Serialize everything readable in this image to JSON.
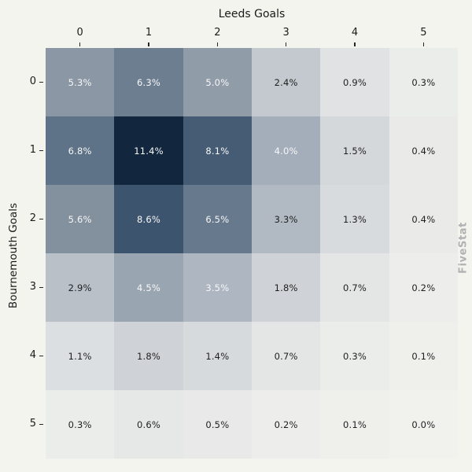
{
  "figure": {
    "background_color": "#f4f4ef",
    "watermark": "FiveStat",
    "watermark_color": "#b1b1b1"
  },
  "chart_data": {
    "type": "heatmap",
    "title": "",
    "xlabel": "Leeds Goals",
    "ylabel": "Bournemouth Goals",
    "x_axis_position": "top",
    "x_tick_labels": [
      "0",
      "1",
      "2",
      "3",
      "4",
      "5"
    ],
    "y_tick_labels": [
      "0",
      "1",
      "2",
      "3",
      "4",
      "5"
    ],
    "values_percent": [
      [
        5.3,
        6.3,
        5.0,
        2.4,
        0.9,
        0.3
      ],
      [
        6.8,
        11.4,
        8.1,
        4.0,
        1.5,
        0.4
      ],
      [
        5.6,
        8.6,
        6.5,
        3.3,
        1.3,
        0.4
      ],
      [
        2.9,
        4.5,
        3.5,
        1.8,
        0.7,
        0.2
      ],
      [
        1.1,
        1.8,
        1.4,
        0.7,
        0.3,
        0.1
      ],
      [
        0.3,
        0.6,
        0.5,
        0.2,
        0.1,
        0.0
      ]
    ],
    "cell_label_suffix": "%",
    "cell_label_decimals": 1,
    "value_min": 0,
    "value_max": 11.4,
    "colormap_stops": [
      [
        0.0,
        "#f1f2ed"
      ],
      [
        0.08,
        "#e0e2e4"
      ],
      [
        0.21,
        "#c3c9ce"
      ],
      [
        0.35,
        "#a4aebb"
      ],
      [
        0.47,
        "#8a96a3"
      ],
      [
        0.6,
        "#5d7187"
      ],
      [
        0.75,
        "#3e556f"
      ],
      [
        1.0,
        "#12263e"
      ]
    ],
    "cell_text_color_light": "#f7f7f7",
    "cell_text_color_dark": "#1f1f1f",
    "light_text_threshold": 3.4,
    "legend": "none",
    "grid": "off"
  }
}
